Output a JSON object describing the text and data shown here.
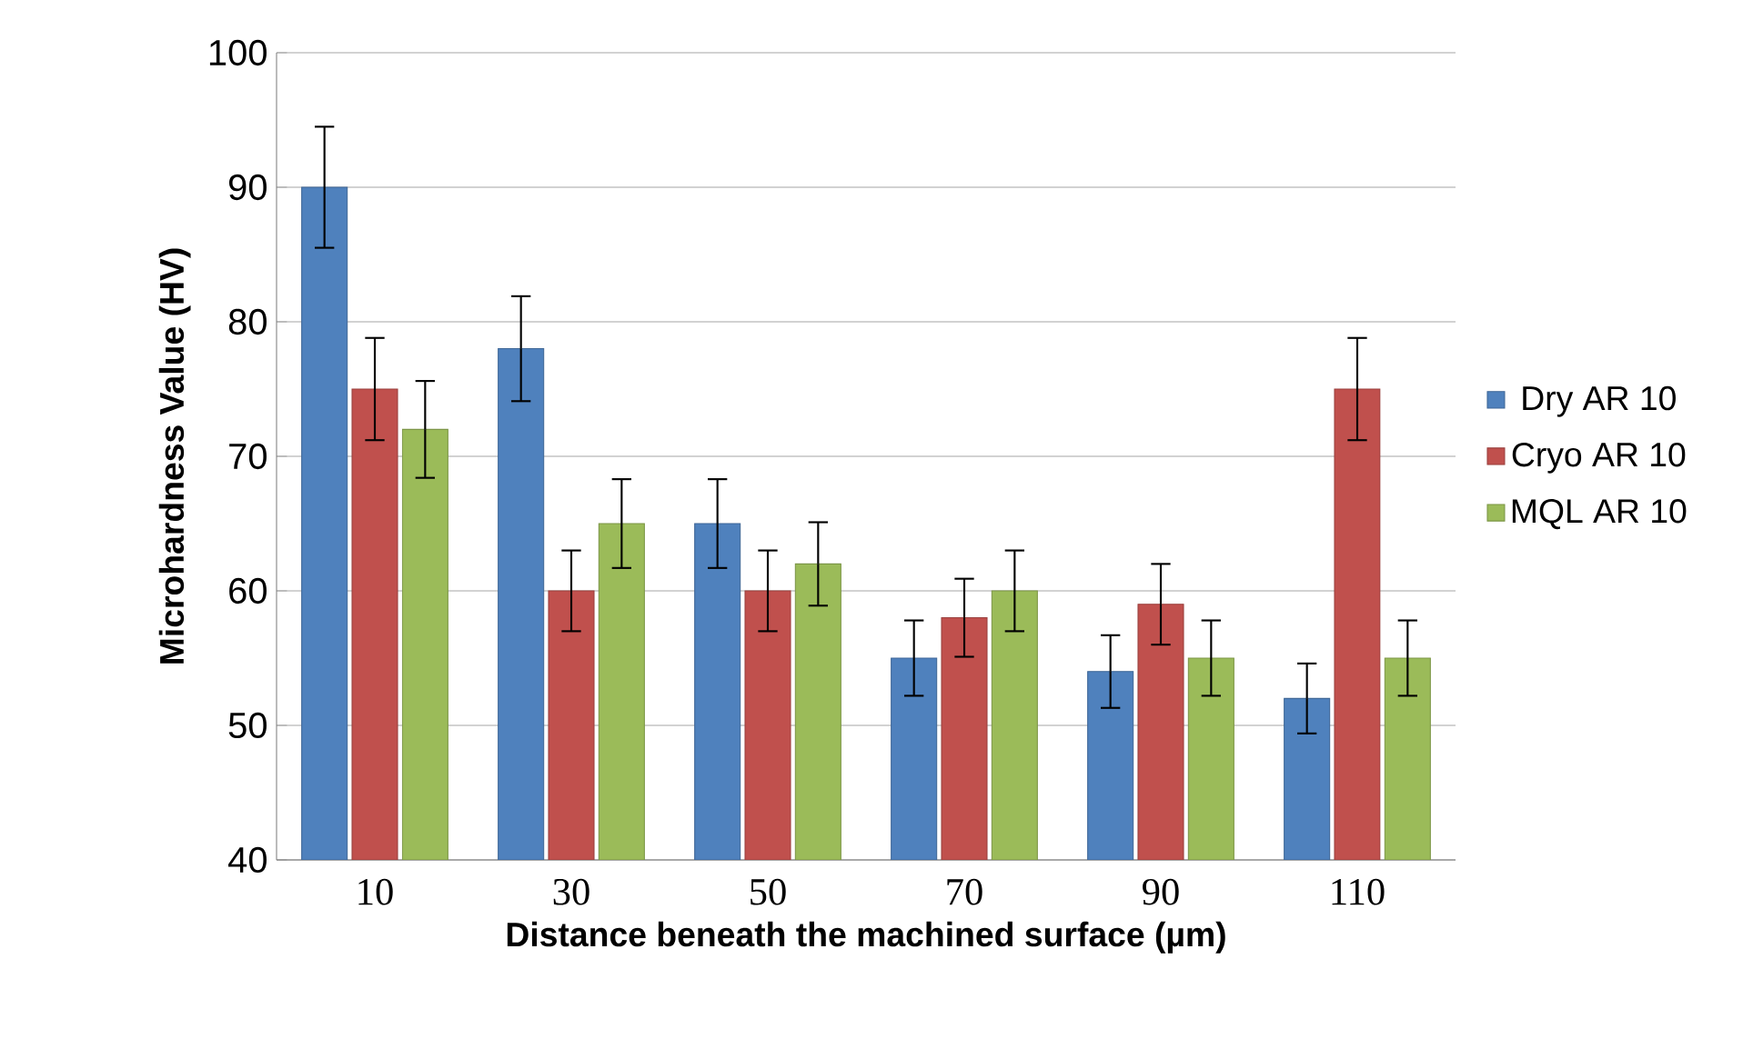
{
  "chart_data": {
    "type": "bar",
    "xlabel": "Distance beneath the machined surface (µm)",
    "ylabel": "Microhardness Value (HV)",
    "categories": [
      "10",
      "30",
      "50",
      "70",
      "90",
      "110"
    ],
    "series": [
      {
        "name": "Dry AR 10",
        "color": "#4f81bd",
        "values": [
          90,
          78,
          65,
          55,
          54,
          52
        ],
        "errors": [
          4.5,
          3.9,
          3.3,
          2.8,
          2.7,
          2.6
        ]
      },
      {
        "name": "Cryo AR 10",
        "color": "#c0504d",
        "values": [
          75,
          60,
          60,
          58,
          59,
          75
        ],
        "errors": [
          3.8,
          3.0,
          3.0,
          2.9,
          3.0,
          3.8
        ]
      },
      {
        "name": "MQL AR 10",
        "color": "#9bbb59",
        "values": [
          72,
          65,
          62,
          60,
          55,
          55
        ],
        "errors": [
          3.6,
          3.3,
          3.1,
          3.0,
          2.8,
          2.8
        ]
      }
    ],
    "ylim": [
      40,
      100
    ],
    "yticks": [
      40,
      50,
      60,
      70,
      80,
      90,
      100
    ],
    "grid": "y",
    "legend": "right"
  }
}
